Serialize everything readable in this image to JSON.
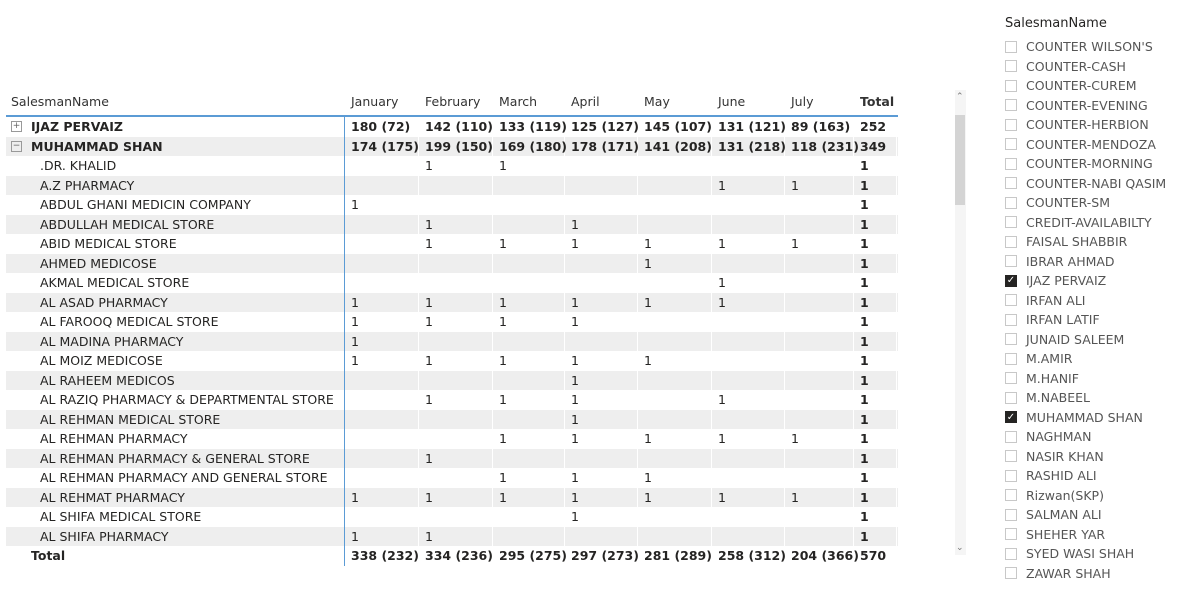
{
  "matrix": {
    "headers": [
      "SalesmanName",
      "January",
      "February",
      "March",
      "April",
      "May",
      "June",
      "July",
      "Total"
    ],
    "groups": [
      {
        "name": "IJAZ PERVAIZ",
        "expanded": false,
        "values": [
          "180 (72)",
          "142 (110)",
          "133 (119)",
          "125 (127)",
          "145 (107)",
          "131 (121)",
          "89 (163)",
          "252"
        ]
      },
      {
        "name": "MUHAMMAD SHAN",
        "expanded": true,
        "values": [
          "174 (175)",
          "199 (150)",
          "169 (180)",
          "178 (171)",
          "141 (208)",
          "131 (218)",
          "118 (231)",
          "349"
        ]
      }
    ],
    "children": [
      {
        "name": ".DR. KHALID",
        "values": [
          "",
          "1",
          "1",
          "",
          "",
          "",
          "",
          "1"
        ]
      },
      {
        "name": "A.Z PHARMACY",
        "values": [
          "",
          "",
          "",
          "",
          "",
          "1",
          "1",
          "1"
        ]
      },
      {
        "name": "ABDUL GHANI MEDICIN COMPANY",
        "values": [
          "1",
          "",
          "",
          "",
          "",
          "",
          "",
          "1"
        ]
      },
      {
        "name": "ABDULLAH MEDICAL STORE",
        "values": [
          "",
          "1",
          "",
          "1",
          "",
          "",
          "",
          "1"
        ]
      },
      {
        "name": "ABID MEDICAL STORE",
        "values": [
          "",
          "1",
          "1",
          "1",
          "1",
          "1",
          "1",
          "1"
        ]
      },
      {
        "name": "AHMED MEDICOSE",
        "values": [
          "",
          "",
          "",
          "",
          "1",
          "",
          "",
          "1"
        ]
      },
      {
        "name": "AKMAL MEDICAL STORE",
        "values": [
          "",
          "",
          "",
          "",
          "",
          "1",
          "",
          "1"
        ]
      },
      {
        "name": "AL ASAD PHARMACY",
        "values": [
          "1",
          "1",
          "1",
          "1",
          "1",
          "1",
          "",
          "1"
        ]
      },
      {
        "name": "AL FAROOQ MEDICAL STORE",
        "values": [
          "1",
          "1",
          "1",
          "1",
          "",
          "",
          "",
          "1"
        ]
      },
      {
        "name": "AL MADINA PHARMACY",
        "values": [
          "1",
          "",
          "",
          "",
          "",
          "",
          "",
          "1"
        ]
      },
      {
        "name": "AL MOIZ MEDICOSE",
        "values": [
          "1",
          "1",
          "1",
          "1",
          "1",
          "",
          "",
          "1"
        ]
      },
      {
        "name": "AL RAHEEM MEDICOS",
        "values": [
          "",
          "",
          "",
          "1",
          "",
          "",
          "",
          "1"
        ]
      },
      {
        "name": "AL RAZIQ PHARMACY & DEPARTMENTAL STORE",
        "values": [
          "",
          "1",
          "1",
          "1",
          "",
          "1",
          "",
          "1"
        ]
      },
      {
        "name": "AL REHMAN MEDICAL STORE",
        "values": [
          "",
          "",
          "",
          "1",
          "",
          "",
          "",
          "1"
        ]
      },
      {
        "name": "AL REHMAN PHARMACY",
        "values": [
          "",
          "",
          "1",
          "1",
          "1",
          "1",
          "1",
          "1"
        ]
      },
      {
        "name": "AL REHMAN PHARMACY & GENERAL STORE",
        "values": [
          "",
          "1",
          "",
          "",
          "",
          "",
          "",
          "1"
        ]
      },
      {
        "name": "AL REHMAN PHARMACY AND GENERAL STORE",
        "values": [
          "",
          "",
          "1",
          "1",
          "1",
          "",
          "",
          "1"
        ]
      },
      {
        "name": "AL REHMAT PHARMACY",
        "values": [
          "1",
          "1",
          "1",
          "1",
          "1",
          "1",
          "1",
          "1"
        ]
      },
      {
        "name": "AL SHIFA MEDICAL STORE",
        "values": [
          "",
          "",
          "",
          "1",
          "",
          "",
          "",
          "1"
        ]
      },
      {
        "name": "AL SHIFA PHARMACY",
        "values": [
          "1",
          "1",
          "",
          "",
          "",
          "",
          "",
          "1"
        ]
      }
    ],
    "total": {
      "name": "Total",
      "values": [
        "338 (232)",
        "334 (236)",
        "295 (275)",
        "297 (273)",
        "281 (289)",
        "258 (312)",
        "204 (366)",
        "570"
      ]
    }
  },
  "slicer": {
    "title": "SalesmanName",
    "items": [
      {
        "label": "COUNTER WILSON'S",
        "checked": false
      },
      {
        "label": "COUNTER-CASH",
        "checked": false
      },
      {
        "label": "COUNTER-CUREM",
        "checked": false
      },
      {
        "label": "COUNTER-EVENING",
        "checked": false
      },
      {
        "label": "COUNTER-HERBION",
        "checked": false
      },
      {
        "label": "COUNTER-MENDOZA",
        "checked": false
      },
      {
        "label": "COUNTER-MORNING",
        "checked": false
      },
      {
        "label": "COUNTER-NABI QASIM",
        "checked": false
      },
      {
        "label": "COUNTER-SM",
        "checked": false
      },
      {
        "label": "CREDIT-AVAILABILTY",
        "checked": false
      },
      {
        "label": "FAISAL SHABBIR",
        "checked": false
      },
      {
        "label": "IBRAR AHMAD",
        "checked": false
      },
      {
        "label": "IJAZ PERVAIZ",
        "checked": true
      },
      {
        "label": "IRFAN ALI",
        "checked": false
      },
      {
        "label": "IRFAN LATIF",
        "checked": false
      },
      {
        "label": "JUNAID SALEEM",
        "checked": false
      },
      {
        "label": "M.AMIR",
        "checked": false
      },
      {
        "label": "M.HANIF",
        "checked": false
      },
      {
        "label": "M.NABEEL",
        "checked": false
      },
      {
        "label": "MUHAMMAD SHAN",
        "checked": true
      },
      {
        "label": "NAGHMAN",
        "checked": false
      },
      {
        "label": "NASIR KHAN",
        "checked": false
      },
      {
        "label": "RASHID ALI",
        "checked": false
      },
      {
        "label": "Rizwan(SKP)",
        "checked": false
      },
      {
        "label": "SALMAN ALI",
        "checked": false
      },
      {
        "label": "SHEHER YAR",
        "checked": false
      },
      {
        "label": "SYED WASI SHAH",
        "checked": false
      },
      {
        "label": "ZAWAR SHAH",
        "checked": false
      }
    ]
  }
}
